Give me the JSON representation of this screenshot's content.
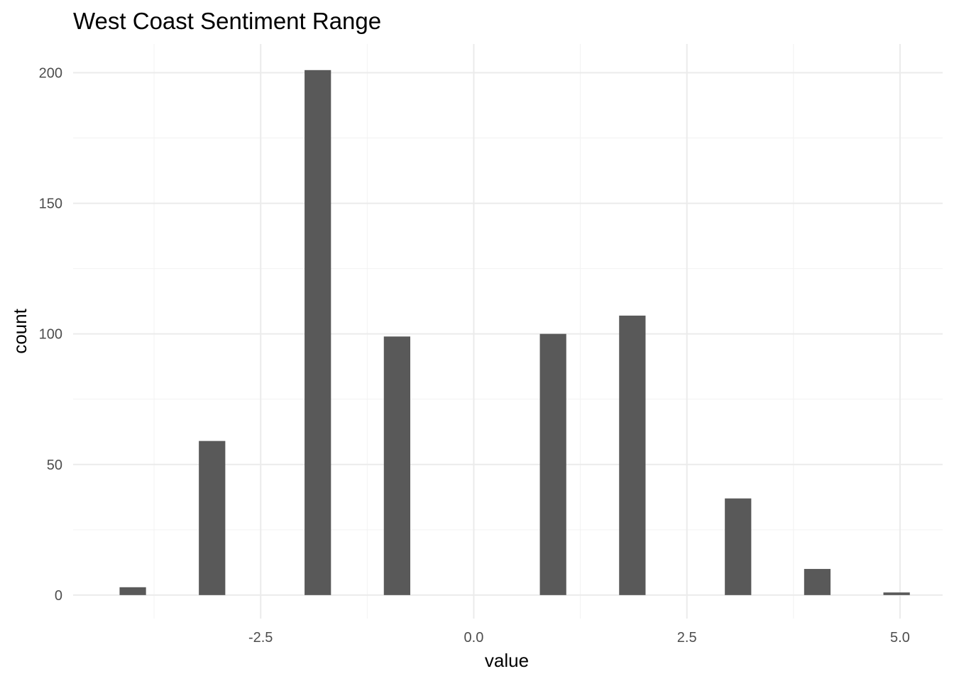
{
  "chart_data": {
    "type": "bar",
    "title": "West Coast Sentiment Range",
    "xlabel": "value",
    "ylabel": "count",
    "xlim": [
      -4.7,
      5.5
    ],
    "ylim": [
      -9,
      211
    ],
    "x_ticks": [
      -2.5,
      0.0,
      2.5,
      5.0
    ],
    "x_tick_labels": [
      "-2.5",
      "0.0",
      "2.5",
      "5.0"
    ],
    "x_minor_ticks": [
      -3.75,
      -1.25,
      1.25,
      3.75
    ],
    "y_ticks": [
      0,
      50,
      100,
      150,
      200
    ],
    "y_tick_labels": [
      "0",
      "50",
      "100",
      "150",
      "200"
    ],
    "y_minor_ticks": [
      25,
      75,
      125,
      175
    ],
    "bar_width": 0.31,
    "series": [
      {
        "x": [
          -4.0,
          -3.07,
          -1.83,
          -0.9,
          0.93,
          1.86,
          3.1,
          4.03,
          4.96
        ],
        "values": [
          3,
          59,
          201,
          99,
          100,
          107,
          37,
          10,
          1
        ]
      }
    ],
    "grid": true,
    "bar_color": "#595959"
  }
}
